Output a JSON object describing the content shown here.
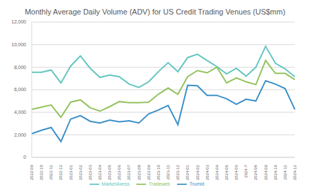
{
  "chart_data": {
    "type": "line",
    "title": "Monthly Average Daily Volume (ADV) for US Credit Trading Venues (US$mm)",
    "categories": [
      "2022-09",
      "2022-10",
      "2022-11",
      "2022-12",
      "2023-01",
      "2023-02",
      "2023-03",
      "2023-04",
      "2023-05",
      "2023-06",
      "2023-07",
      "2023-08",
      "2023-09",
      "2023-10",
      "2023-11",
      "2023-12",
      "2024-01",
      "2024-02",
      "2024-03",
      "2024-04",
      "2024-05",
      "2024-06",
      "2024-7",
      "2024-08",
      "2024-09",
      "2024-10",
      "2024-11",
      "2024-12"
    ],
    "series": [
      {
        "name": "Trumid",
        "color": "#3a8fc8",
        "values": [
          2100,
          2400,
          2650,
          1400,
          3400,
          3700,
          3200,
          3050,
          3300,
          3150,
          3250,
          3050,
          3850,
          4200,
          4600,
          2900,
          6400,
          6350,
          5500,
          5500,
          5200,
          4700,
          5150,
          5000,
          6800,
          6500,
          6100,
          4250
        ]
      },
      {
        "name": "MarketAxess",
        "color": "#62c6bf",
        "values": [
          7550,
          7550,
          7750,
          6600,
          8100,
          9000,
          7900,
          7100,
          7300,
          7150,
          6500,
          6200,
          6700,
          7600,
          8400,
          7600,
          8850,
          9150,
          8600,
          8050,
          7400,
          7900,
          7200,
          8000,
          9850,
          8350,
          7850,
          7150
        ]
      },
      {
        "name": "Tradeweb",
        "color": "#93c25c",
        "values": [
          4250,
          4450,
          4650,
          3550,
          4900,
          5100,
          4400,
          4100,
          4500,
          4950,
          4850,
          4850,
          4900,
          5600,
          6150,
          5600,
          7150,
          7700,
          7500,
          8000,
          6600,
          7050,
          6700,
          6450,
          8600,
          7450,
          7450,
          6900
        ]
      }
    ],
    "ylim": [
      0,
      12000
    ],
    "yticks": [
      0,
      {
        "value": 2000,
        "label": "2,000"
      },
      {
        "value": 4000,
        "label": "4,000"
      },
      {
        "value": 6000,
        "label": "6,000"
      },
      {
        "value": 8000,
        "label": "8,000"
      },
      {
        "value": 10000,
        "label": "10,000"
      },
      {
        "value": 12000,
        "label": "12,000"
      }
    ],
    "grid": true,
    "legend": "bottom",
    "marker": "none"
  }
}
